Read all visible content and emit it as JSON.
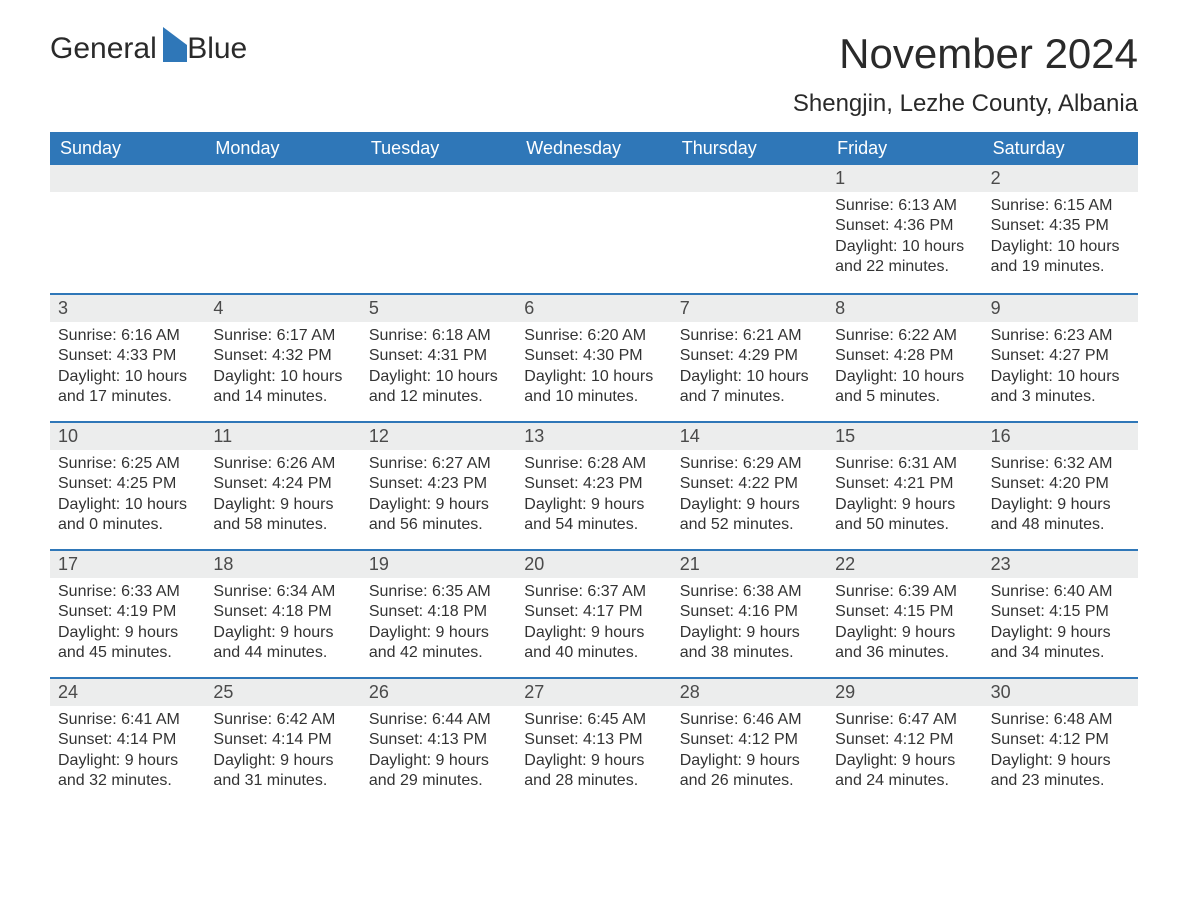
{
  "brand": {
    "name_a": "General",
    "name_b": "Blue",
    "brand_color": "#2f77b8"
  },
  "header": {
    "month_title": "November 2024",
    "location": "Shengjin, Lezhe County, Albania"
  },
  "colors": {
    "header_bg": "#2f77b8",
    "header_fg": "#ffffff",
    "daynum_bg": "#eceded",
    "text": "#333333",
    "rule": "#2f77b8",
    "page_bg": "#ffffff"
  },
  "weekdays": [
    "Sunday",
    "Monday",
    "Tuesday",
    "Wednesday",
    "Thursday",
    "Friday",
    "Saturday"
  ],
  "layout": {
    "first_weekday_index": 5,
    "days_in_month": 30,
    "columns": 7
  },
  "days": [
    {
      "n": 1,
      "sunrise": "6:13 AM",
      "sunset": "4:36 PM",
      "daylight": "10 hours and 22 minutes."
    },
    {
      "n": 2,
      "sunrise": "6:15 AM",
      "sunset": "4:35 PM",
      "daylight": "10 hours and 19 minutes."
    },
    {
      "n": 3,
      "sunrise": "6:16 AM",
      "sunset": "4:33 PM",
      "daylight": "10 hours and 17 minutes."
    },
    {
      "n": 4,
      "sunrise": "6:17 AM",
      "sunset": "4:32 PM",
      "daylight": "10 hours and 14 minutes."
    },
    {
      "n": 5,
      "sunrise": "6:18 AM",
      "sunset": "4:31 PM",
      "daylight": "10 hours and 12 minutes."
    },
    {
      "n": 6,
      "sunrise": "6:20 AM",
      "sunset": "4:30 PM",
      "daylight": "10 hours and 10 minutes."
    },
    {
      "n": 7,
      "sunrise": "6:21 AM",
      "sunset": "4:29 PM",
      "daylight": "10 hours and 7 minutes."
    },
    {
      "n": 8,
      "sunrise": "6:22 AM",
      "sunset": "4:28 PM",
      "daylight": "10 hours and 5 minutes."
    },
    {
      "n": 9,
      "sunrise": "6:23 AM",
      "sunset": "4:27 PM",
      "daylight": "10 hours and 3 minutes."
    },
    {
      "n": 10,
      "sunrise": "6:25 AM",
      "sunset": "4:25 PM",
      "daylight": "10 hours and 0 minutes."
    },
    {
      "n": 11,
      "sunrise": "6:26 AM",
      "sunset": "4:24 PM",
      "daylight": "9 hours and 58 minutes."
    },
    {
      "n": 12,
      "sunrise": "6:27 AM",
      "sunset": "4:23 PM",
      "daylight": "9 hours and 56 minutes."
    },
    {
      "n": 13,
      "sunrise": "6:28 AM",
      "sunset": "4:23 PM",
      "daylight": "9 hours and 54 minutes."
    },
    {
      "n": 14,
      "sunrise": "6:29 AM",
      "sunset": "4:22 PM",
      "daylight": "9 hours and 52 minutes."
    },
    {
      "n": 15,
      "sunrise": "6:31 AM",
      "sunset": "4:21 PM",
      "daylight": "9 hours and 50 minutes."
    },
    {
      "n": 16,
      "sunrise": "6:32 AM",
      "sunset": "4:20 PM",
      "daylight": "9 hours and 48 minutes."
    },
    {
      "n": 17,
      "sunrise": "6:33 AM",
      "sunset": "4:19 PM",
      "daylight": "9 hours and 45 minutes."
    },
    {
      "n": 18,
      "sunrise": "6:34 AM",
      "sunset": "4:18 PM",
      "daylight": "9 hours and 44 minutes."
    },
    {
      "n": 19,
      "sunrise": "6:35 AM",
      "sunset": "4:18 PM",
      "daylight": "9 hours and 42 minutes."
    },
    {
      "n": 20,
      "sunrise": "6:37 AM",
      "sunset": "4:17 PM",
      "daylight": "9 hours and 40 minutes."
    },
    {
      "n": 21,
      "sunrise": "6:38 AM",
      "sunset": "4:16 PM",
      "daylight": "9 hours and 38 minutes."
    },
    {
      "n": 22,
      "sunrise": "6:39 AM",
      "sunset": "4:15 PM",
      "daylight": "9 hours and 36 minutes."
    },
    {
      "n": 23,
      "sunrise": "6:40 AM",
      "sunset": "4:15 PM",
      "daylight": "9 hours and 34 minutes."
    },
    {
      "n": 24,
      "sunrise": "6:41 AM",
      "sunset": "4:14 PM",
      "daylight": "9 hours and 32 minutes."
    },
    {
      "n": 25,
      "sunrise": "6:42 AM",
      "sunset": "4:14 PM",
      "daylight": "9 hours and 31 minutes."
    },
    {
      "n": 26,
      "sunrise": "6:44 AM",
      "sunset": "4:13 PM",
      "daylight": "9 hours and 29 minutes."
    },
    {
      "n": 27,
      "sunrise": "6:45 AM",
      "sunset": "4:13 PM",
      "daylight": "9 hours and 28 minutes."
    },
    {
      "n": 28,
      "sunrise": "6:46 AM",
      "sunset": "4:12 PM",
      "daylight": "9 hours and 26 minutes."
    },
    {
      "n": 29,
      "sunrise": "6:47 AM",
      "sunset": "4:12 PM",
      "daylight": "9 hours and 24 minutes."
    },
    {
      "n": 30,
      "sunrise": "6:48 AM",
      "sunset": "4:12 PM",
      "daylight": "9 hours and 23 minutes."
    }
  ],
  "labels": {
    "sunrise": "Sunrise:",
    "sunset": "Sunset:",
    "daylight": "Daylight:"
  }
}
